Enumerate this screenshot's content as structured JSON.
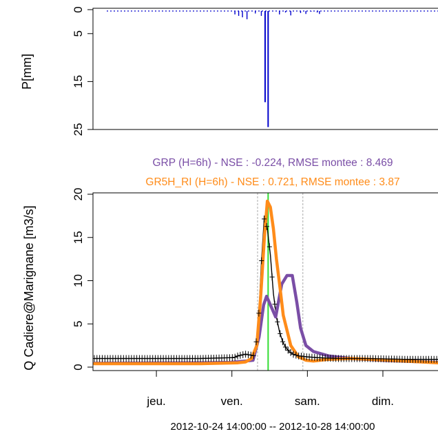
{
  "chart_data": [
    {
      "type": "bar",
      "panel": "precipitation",
      "ylabel": "P[mm]",
      "ylim": [
        25,
        0
      ],
      "y_reversed": true,
      "yticks": [
        "0",
        "5",
        "15",
        "25"
      ],
      "ytick_values": [
        0,
        5,
        15,
        25
      ],
      "x_range_days": [
        -0.42,
        4.15
      ],
      "color": "#0000cc",
      "bars": [
        {
          "x": 1.46,
          "value": 1.0
        },
        {
          "x": 1.51,
          "value": 1.3
        },
        {
          "x": 1.56,
          "value": 1.6
        },
        {
          "x": 1.62,
          "value": 2.0
        },
        {
          "x": 1.73,
          "value": 0.8
        },
        {
          "x": 1.81,
          "value": 1.3
        },
        {
          "x": 1.86,
          "value": 19.3
        },
        {
          "x": 1.9,
          "value": 24.5
        },
        {
          "x": 2.05,
          "value": 1.0
        },
        {
          "x": 2.13,
          "value": 0.6
        },
        {
          "x": 2.2,
          "value": 1.2
        },
        {
          "x": 2.33,
          "value": 0.7
        },
        {
          "x": 2.4,
          "value": 0.9
        },
        {
          "x": 2.47,
          "value": 0.4
        },
        {
          "x": 2.55,
          "value": 0.6
        },
        {
          "x": 2.58,
          "value": 0.9
        }
      ]
    },
    {
      "type": "line",
      "panel": "discharge",
      "ylabel": "Q Cadiere@Marignane [m3/s]",
      "xlabel": "2012-10-24 14:00:00 -- 2012-10-28 14:00:00",
      "ylim": [
        0,
        20
      ],
      "yticks": [
        "0",
        "5",
        "10",
        "15",
        "20"
      ],
      "ytick_values": [
        0,
        5,
        10,
        15,
        20
      ],
      "x_range_days": [
        -0.42,
        4.15
      ],
      "xtick_labels": [
        "jeu.",
        "ven.",
        "sam.",
        "dim."
      ],
      "xtick_positions": [
        0.42,
        1.42,
        2.42,
        3.42
      ],
      "vlines_gray": [
        1.76,
        2.36
      ],
      "vline_green": 1.9,
      "legend": [
        {
          "text": "GRP (H=6h) - NSE  : -0.224, RMSE montee : 8.469",
          "color": "#7a4ea6"
        },
        {
          "text": "GR5H_RI (H=6h) - NSE  : 0.721, RMSE montee : 3.87",
          "color": "#ff8c1a"
        }
      ],
      "series": [
        {
          "name": "GRP (H=6h)",
          "color": "#7a4ea6",
          "x": [
            -0.4,
            1.0,
            1.4,
            1.6,
            1.7,
            1.78,
            1.84,
            1.88,
            1.93,
            2.0,
            2.08,
            2.15,
            2.22,
            2.28,
            2.33,
            2.4,
            2.5,
            2.7,
            3.0,
            3.5,
            4.15
          ],
          "y": [
            0.45,
            0.5,
            0.55,
            0.7,
            0.8,
            3.5,
            7.2,
            8.2,
            7.2,
            5.8,
            9.6,
            10.6,
            10.6,
            7.5,
            4.5,
            2.5,
            1.8,
            1.3,
            1.0,
            0.75,
            0.55
          ]
        },
        {
          "name": "GR5H_RI (H=6h)",
          "color": "#ff8c1a",
          "x": [
            -0.4,
            1.0,
            1.5,
            1.6,
            1.68,
            1.75,
            1.8,
            1.85,
            1.89,
            1.93,
            1.97,
            2.01,
            2.06,
            2.1,
            2.2,
            2.3,
            2.4,
            2.5,
            2.7,
            3.0,
            3.5,
            4.15
          ],
          "y": [
            0.4,
            0.4,
            0.5,
            0.6,
            1.0,
            2.5,
            8.0,
            15.0,
            19.2,
            18.5,
            16.0,
            12.5,
            9.0,
            6.0,
            2.5,
            1.2,
            0.8,
            0.7,
            0.9,
            1.0,
            0.8,
            0.5
          ]
        },
        {
          "name": "observed",
          "color": "#000000",
          "marker": "+",
          "x": [
            -0.4,
            1.0,
            1.45,
            1.5,
            1.55,
            1.6,
            1.66,
            1.72,
            1.77,
            1.81,
            1.85,
            1.89,
            1.93,
            1.97,
            2.01,
            2.05,
            2.09,
            2.13,
            2.18,
            2.23,
            2.3,
            2.4,
            2.55,
            2.8,
            3.2,
            3.7,
            4.15
          ],
          "y": [
            1.0,
            1.0,
            1.1,
            1.3,
            1.4,
            1.5,
            1.4,
            1.3,
            5.0,
            12.0,
            17.5,
            16.0,
            13.0,
            8.5,
            5.8,
            4.1,
            3.0,
            2.3,
            1.8,
            1.5,
            1.3,
            1.2,
            1.1,
            1.0,
            1.0,
            0.9,
            0.9
          ]
        }
      ]
    }
  ]
}
